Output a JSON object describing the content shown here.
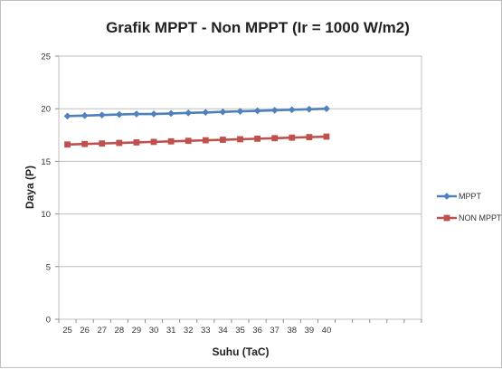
{
  "chart_data": {
    "type": "line",
    "title": "Grafik MPPT - Non MPPT (Ir = 1000 W/m2)",
    "xlabel": "Suhu (TaC)",
    "ylabel": "Daya (P)",
    "x": [
      "25",
      "26",
      "27",
      "28",
      "29",
      "30",
      "31",
      "32",
      "33",
      "34",
      "35",
      "36",
      "37",
      "38",
      "39",
      "40"
    ],
    "extra_slots": 5,
    "ylim": [
      0,
      25
    ],
    "yticks": [
      0,
      5,
      10,
      15,
      20,
      25
    ],
    "grid": "horizontal",
    "legend_position": "right",
    "series": [
      {
        "name": "MPPT",
        "color": "#4f81bd",
        "marker": "diamond",
        "values": [
          19.3,
          19.35,
          19.4,
          19.45,
          19.5,
          19.5,
          19.55,
          19.6,
          19.65,
          19.7,
          19.75,
          19.8,
          19.85,
          19.9,
          19.95,
          20.0
        ]
      },
      {
        "name": "NON MPPT",
        "color": "#c0504d",
        "marker": "square",
        "values": [
          16.6,
          16.65,
          16.7,
          16.75,
          16.8,
          16.85,
          16.9,
          16.95,
          17.0,
          17.05,
          17.1,
          17.15,
          17.2,
          17.25,
          17.3,
          17.35
        ]
      }
    ]
  }
}
